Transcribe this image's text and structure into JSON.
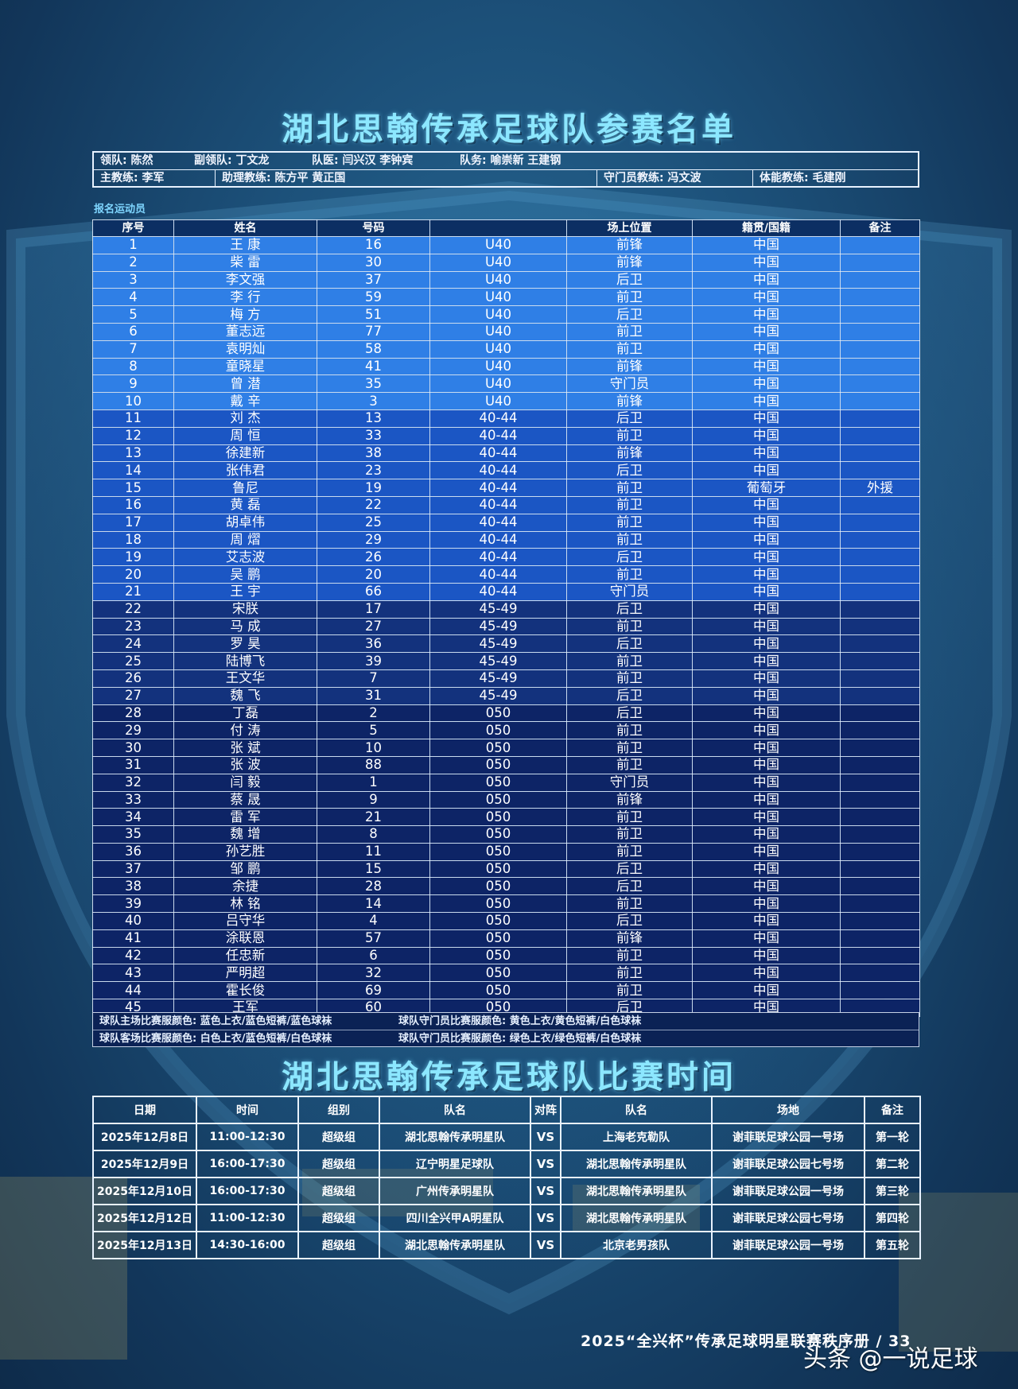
{
  "roster_title": "湖北思翰传承足球队参赛名单",
  "staff": {
    "row1": [
      {
        "label": "领队:",
        "value": "陈然"
      },
      {
        "label": "副领队:",
        "value": "丁文龙"
      },
      {
        "label": "队医:",
        "value": "闫兴汉 李钟宾"
      },
      {
        "label": "队务:",
        "value": "喻崇新 王建钢"
      }
    ],
    "row2": [
      {
        "label": "主教练:",
        "value": "李军"
      },
      {
        "label": "助理教练:",
        "value": "陈方平 黄正国"
      },
      {
        "label": "守门员教练:",
        "value": "冯文波"
      },
      {
        "label": "体能教练:",
        "value": "毛建刚"
      }
    ]
  },
  "section_label": "报名运动员",
  "roster_headers": [
    "序号",
    "姓名",
    "号码",
    "",
    "场上位置",
    "籍贯/国籍",
    "备注"
  ],
  "players": [
    [
      "1",
      "王 康",
      "16",
      "U40",
      "前锋",
      "中国",
      ""
    ],
    [
      "2",
      "柴 雷",
      "30",
      "U40",
      "前锋",
      "中国",
      ""
    ],
    [
      "3",
      "李文强",
      "37",
      "U40",
      "后卫",
      "中国",
      ""
    ],
    [
      "4",
      "李 行",
      "59",
      "U40",
      "前卫",
      "中国",
      ""
    ],
    [
      "5",
      "梅 方",
      "51",
      "U40",
      "后卫",
      "中国",
      ""
    ],
    [
      "6",
      "董志远",
      "77",
      "U40",
      "前卫",
      "中国",
      ""
    ],
    [
      "7",
      "袁明灿",
      "58",
      "U40",
      "前卫",
      "中国",
      ""
    ],
    [
      "8",
      "童晓星",
      "41",
      "U40",
      "前锋",
      "中国",
      ""
    ],
    [
      "9",
      "曾 潜",
      "35",
      "U40",
      "守门员",
      "中国",
      ""
    ],
    [
      "10",
      "戴 辛",
      "3",
      "U40",
      "前锋",
      "中国",
      ""
    ],
    [
      "11",
      "刘 杰",
      "13",
      "40-44",
      "后卫",
      "中国",
      ""
    ],
    [
      "12",
      "周 恒",
      "33",
      "40-44",
      "前卫",
      "中国",
      ""
    ],
    [
      "13",
      "徐建新",
      "38",
      "40-44",
      "前锋",
      "中国",
      ""
    ],
    [
      "14",
      "张伟君",
      "23",
      "40-44",
      "后卫",
      "中国",
      ""
    ],
    [
      "15",
      "鲁尼",
      "19",
      "40-44",
      "前卫",
      "葡萄牙",
      "外援"
    ],
    [
      "16",
      "黄 磊",
      "22",
      "40-44",
      "前卫",
      "中国",
      ""
    ],
    [
      "17",
      "胡卓伟",
      "25",
      "40-44",
      "前卫",
      "中国",
      ""
    ],
    [
      "18",
      "周 熠",
      "29",
      "40-44",
      "前卫",
      "中国",
      ""
    ],
    [
      "19",
      "艾志波",
      "26",
      "40-44",
      "后卫",
      "中国",
      ""
    ],
    [
      "20",
      "吴 鹏",
      "20",
      "40-44",
      "前卫",
      "中国",
      ""
    ],
    [
      "21",
      "王 宇",
      "66",
      "40-44",
      "守门员",
      "中国",
      ""
    ],
    [
      "22",
      "宋朕",
      "17",
      "45-49",
      "后卫",
      "中国",
      ""
    ],
    [
      "23",
      "马 成",
      "27",
      "45-49",
      "前卫",
      "中国",
      ""
    ],
    [
      "24",
      "罗 昊",
      "36",
      "45-49",
      "后卫",
      "中国",
      ""
    ],
    [
      "25",
      "陆博飞",
      "39",
      "45-49",
      "前卫",
      "中国",
      ""
    ],
    [
      "26",
      "王文华",
      "7",
      "45-49",
      "前卫",
      "中国",
      ""
    ],
    [
      "27",
      "魏 飞",
      "31",
      "45-49",
      "后卫",
      "中国",
      ""
    ],
    [
      "28",
      "丁磊",
      "2",
      "050",
      "后卫",
      "中国",
      ""
    ],
    [
      "29",
      "付 涛",
      "5",
      "050",
      "前卫",
      "中国",
      ""
    ],
    [
      "30",
      "张 斌",
      "10",
      "050",
      "前卫",
      "中国",
      ""
    ],
    [
      "31",
      "张 波",
      "88",
      "050",
      "前卫",
      "中国",
      ""
    ],
    [
      "32",
      "闫 毅",
      "1",
      "050",
      "守门员",
      "中国",
      ""
    ],
    [
      "33",
      "蔡 晟",
      "9",
      "050",
      "前锋",
      "中国",
      ""
    ],
    [
      "34",
      "雷 军",
      "21",
      "050",
      "前卫",
      "中国",
      ""
    ],
    [
      "35",
      "魏 增",
      "8",
      "050",
      "前卫",
      "中国",
      ""
    ],
    [
      "36",
      "孙艺胜",
      "11",
      "050",
      "前卫",
      "中国",
      ""
    ],
    [
      "37",
      "邹 鹏",
      "15",
      "050",
      "后卫",
      "中国",
      ""
    ],
    [
      "38",
      "余捷",
      "28",
      "050",
      "后卫",
      "中国",
      ""
    ],
    [
      "39",
      "林 铭",
      "14",
      "050",
      "前卫",
      "中国",
      ""
    ],
    [
      "40",
      "吕守华",
      "4",
      "050",
      "后卫",
      "中国",
      ""
    ],
    [
      "41",
      "涂联恩",
      "57",
      "050",
      "前锋",
      "中国",
      ""
    ],
    [
      "42",
      "任忠新",
      "6",
      "050",
      "前卫",
      "中国",
      ""
    ],
    [
      "43",
      "严明超",
      "32",
      "050",
      "前卫",
      "中国",
      ""
    ],
    [
      "44",
      "霍长俊",
      "69",
      "050",
      "前卫",
      "中国",
      ""
    ],
    [
      "45",
      "王军",
      "60",
      "050",
      "后卫",
      "中国",
      ""
    ]
  ],
  "uniforms": {
    "home_field": "球队主场比赛服颜色: 蓝色上衣/蓝色短裤/蓝色球袜",
    "home_gk": "球队守门员比赛服颜色: 黄色上衣/黄色短裤/白色球袜",
    "away_field": "球队客场比赛服颜色: 白色上衣/蓝色短裤/白色球袜",
    "away_gk": "球队守门员比赛服颜色: 绿色上衣/绿色短裤/白色球袜"
  },
  "schedule_title": "湖北思翰传承足球队比赛时间",
  "schedule_headers": [
    "日期",
    "时间",
    "组别",
    "队名",
    "对阵",
    "队名",
    "场地",
    "备注"
  ],
  "matches": [
    [
      "2025年12月8日",
      "11:00-12:30",
      "超级组",
      "湖北思翰传承明星队",
      "VS",
      "上海老克勒队",
      "谢菲联足球公园一号场",
      "第一轮"
    ],
    [
      "2025年12月9日",
      "16:00-17:30",
      "超级组",
      "辽宁明星足球队",
      "VS",
      "湖北思翰传承明星队",
      "谢菲联足球公园七号场",
      "第二轮"
    ],
    [
      "2025年12月10日",
      "16:00-17:30",
      "超级组",
      "广州传承明星队",
      "VS",
      "湖北思翰传承明星队",
      "谢菲联足球公园一号场",
      "第三轮"
    ],
    [
      "2025年12月12日",
      "11:00-12:30",
      "超级组",
      "四川全兴甲A明星队",
      "VS",
      "湖北思翰传承明星队",
      "谢菲联足球公园七号场",
      "第四轮"
    ],
    [
      "2025年12月13日",
      "14:30-16:00",
      "超级组",
      "湖北思翰传承明星队",
      "VS",
      "北京老男孩队",
      "谢菲联足球公园一号场",
      "第五轮"
    ]
  ],
  "footer": "2025“全兴杯”传承足球明星联赛秩序册 / 33",
  "watermark": "头条 @一说足球",
  "colors": {
    "title": "#8ce7ff",
    "row_light": "#2f7fe6",
    "row_mid": "#1b56c4",
    "row_dark": "#13327d",
    "row_darkest": "#0d2466"
  }
}
